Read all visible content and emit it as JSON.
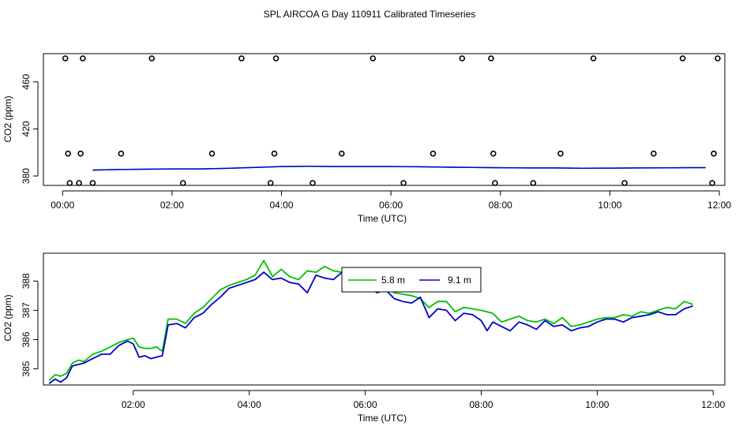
{
  "title": "SPL AIRCOA G  Day 110911  Calibrated Timeseries",
  "colors": {
    "series1": "#00c000",
    "series2": "#0000d0",
    "markers": "#000000"
  },
  "chart_data": [
    {
      "type": "scatter",
      "xlabel": "Time (UTC)",
      "ylabel": "CO2 (ppm)",
      "xlim": [
        -0.35,
        12.1
      ],
      "ylim": [
        372,
        484
      ],
      "x_ticks": [
        0,
        2,
        4,
        6,
        8,
        10,
        12
      ],
      "x_tick_labels": [
        "00:00",
        "02:00",
        "04:00",
        "06:00",
        "08:00",
        "10:00",
        "12:00"
      ],
      "y_ticks": [
        380,
        420,
        460
      ],
      "y_tick_labels": [
        "380",
        "420",
        "460"
      ],
      "markers": [
        {
          "x": 0.05,
          "y": 480
        },
        {
          "x": 0.37,
          "y": 480
        },
        {
          "x": 1.63,
          "y": 480
        },
        {
          "x": 3.27,
          "y": 480
        },
        {
          "x": 3.9,
          "y": 480
        },
        {
          "x": 5.67,
          "y": 480
        },
        {
          "x": 7.3,
          "y": 480
        },
        {
          "x": 7.83,
          "y": 480
        },
        {
          "x": 9.7,
          "y": 480
        },
        {
          "x": 11.33,
          "y": 480
        },
        {
          "x": 11.97,
          "y": 480
        },
        {
          "x": 0.1,
          "y": 399
        },
        {
          "x": 0.33,
          "y": 399
        },
        {
          "x": 1.07,
          "y": 399
        },
        {
          "x": 2.73,
          "y": 399
        },
        {
          "x": 3.87,
          "y": 399
        },
        {
          "x": 5.1,
          "y": 399
        },
        {
          "x": 6.77,
          "y": 399
        },
        {
          "x": 7.87,
          "y": 399
        },
        {
          "x": 9.1,
          "y": 399
        },
        {
          "x": 10.8,
          "y": 399
        },
        {
          "x": 11.9,
          "y": 399
        },
        {
          "x": 0.13,
          "y": 374
        },
        {
          "x": 0.3,
          "y": 374
        },
        {
          "x": 0.55,
          "y": 374
        },
        {
          "x": 2.2,
          "y": 374
        },
        {
          "x": 3.8,
          "y": 374
        },
        {
          "x": 4.57,
          "y": 374
        },
        {
          "x": 6.23,
          "y": 374
        },
        {
          "x": 7.9,
          "y": 374
        },
        {
          "x": 8.6,
          "y": 374
        },
        {
          "x": 10.27,
          "y": 374
        },
        {
          "x": 11.87,
          "y": 374
        }
      ],
      "series": [
        {
          "x": [
            0.55,
            1,
            2,
            2.5,
            3,
            3.5,
            4,
            4.5,
            5,
            5.5,
            6,
            6.5,
            7,
            7.5,
            8,
            8.5,
            9,
            9.5,
            10,
            10.5,
            11,
            11.5,
            11.75
          ],
          "values": [
            385,
            385.5,
            386,
            386,
            386.5,
            387.2,
            388,
            388.2,
            388,
            388,
            388,
            387.8,
            387.5,
            387.2,
            387,
            386.8,
            386.8,
            386.6,
            386.7,
            386.8,
            386.9,
            387.1,
            387.1
          ]
        },
        {
          "x": [
            0.55,
            1,
            2,
            2.5,
            3,
            3.5,
            4,
            4.5,
            5,
            5.5,
            6,
            6.5,
            7,
            7.5,
            8,
            8.5,
            9,
            9.5,
            10,
            10.5,
            11,
            11.5,
            11.75
          ],
          "values": [
            385,
            385.5,
            386,
            386,
            386.5,
            387.2,
            388,
            388.2,
            388,
            388,
            388,
            387.8,
            387.5,
            387.2,
            387,
            386.8,
            386.8,
            386.6,
            386.7,
            386.8,
            386.9,
            387.1,
            387.1
          ]
        }
      ]
    },
    {
      "type": "line",
      "xlabel": "Time (UTC)",
      "ylabel": "CO2 (ppm)",
      "xlim": [
        0.45,
        12.2
      ],
      "ylim": [
        384.45,
        388.95
      ],
      "x_ticks": [
        2,
        4,
        6,
        8,
        10,
        12
      ],
      "x_tick_labels": [
        "02:00",
        "04:00",
        "06:00",
        "08:00",
        "10:00",
        "12:00"
      ],
      "y_ticks": [
        385,
        386,
        387,
        388
      ],
      "y_tick_labels": [
        "385",
        "386",
        "387",
        "388"
      ],
      "legend_position": "top-center",
      "series": [
        {
          "name": "5.8 m",
          "x": [
            0.55,
            0.65,
            0.75,
            0.85,
            0.95,
            1.05,
            1.15,
            1.3,
            1.45,
            1.6,
            1.75,
            1.9,
            2.0,
            2.1,
            2.2,
            2.3,
            2.4,
            2.5,
            2.6,
            2.75,
            2.9,
            3.05,
            3.2,
            3.35,
            3.5,
            3.65,
            3.8,
            3.95,
            4.1,
            4.25,
            4.4,
            4.55,
            4.7,
            4.85,
            5.0,
            5.15,
            5.3,
            5.45,
            5.6,
            5.75,
            5.9,
            6.05,
            6.2,
            6.35,
            6.5,
            6.65,
            6.8,
            6.95,
            7.1,
            7.25,
            7.4,
            7.55,
            7.7,
            7.85,
            8.0,
            8.1,
            8.2,
            8.35,
            8.5,
            8.65,
            8.8,
            8.95,
            9.1,
            9.25,
            9.4,
            9.55,
            9.7,
            9.85,
            10.0,
            10.15,
            10.3,
            10.45,
            10.6,
            10.75,
            10.9,
            11.05,
            11.2,
            11.35,
            11.5,
            11.65
          ],
          "values": [
            384.6,
            384.8,
            384.75,
            384.85,
            385.2,
            385.3,
            385.25,
            385.5,
            385.6,
            385.75,
            385.9,
            386.0,
            386.05,
            385.75,
            385.7,
            385.7,
            385.75,
            385.6,
            386.7,
            386.7,
            386.55,
            386.9,
            387.1,
            387.4,
            387.7,
            387.85,
            387.95,
            388.05,
            388.2,
            388.7,
            388.15,
            388.4,
            388.15,
            388.05,
            388.35,
            388.3,
            388.5,
            388.35,
            388.3,
            388.3,
            388.45,
            388.1,
            387.9,
            387.8,
            387.6,
            387.55,
            387.5,
            387.4,
            387.1,
            387.3,
            387.3,
            386.95,
            387.1,
            387.05,
            387.0,
            386.95,
            386.9,
            386.6,
            386.7,
            386.8,
            386.65,
            386.6,
            386.7,
            386.55,
            386.75,
            386.45,
            386.5,
            386.6,
            386.7,
            386.75,
            386.75,
            386.85,
            386.8,
            386.95,
            386.9,
            387.0,
            387.1,
            387.05,
            387.3,
            387.2
          ]
        },
        {
          "name": "9.1 m",
          "x": [
            0.55,
            0.65,
            0.75,
            0.85,
            0.95,
            1.05,
            1.15,
            1.3,
            1.45,
            1.6,
            1.75,
            1.9,
            2.0,
            2.1,
            2.2,
            2.3,
            2.4,
            2.5,
            2.6,
            2.75,
            2.9,
            3.05,
            3.2,
            3.35,
            3.5,
            3.65,
            3.8,
            3.95,
            4.1,
            4.25,
            4.4,
            4.55,
            4.7,
            4.85,
            5.0,
            5.15,
            5.3,
            5.45,
            5.6,
            5.75,
            5.9,
            6.05,
            6.2,
            6.35,
            6.5,
            6.65,
            6.8,
            6.95,
            7.1,
            7.25,
            7.4,
            7.55,
            7.7,
            7.85,
            8.0,
            8.1,
            8.2,
            8.35,
            8.5,
            8.65,
            8.8,
            8.95,
            9.1,
            9.25,
            9.4,
            9.55,
            9.7,
            9.85,
            10.0,
            10.15,
            10.3,
            10.45,
            10.6,
            10.75,
            10.9,
            11.05,
            11.2,
            11.35,
            11.5,
            11.65
          ],
          "values": [
            384.5,
            384.65,
            384.55,
            384.7,
            385.1,
            385.15,
            385.2,
            385.35,
            385.5,
            385.5,
            385.8,
            385.95,
            385.85,
            385.4,
            385.45,
            385.35,
            385.4,
            385.45,
            386.5,
            386.55,
            386.4,
            386.75,
            386.9,
            387.2,
            387.45,
            387.75,
            387.85,
            387.95,
            388.05,
            388.3,
            388.05,
            388.1,
            387.95,
            387.9,
            387.6,
            388.2,
            388.1,
            388.05,
            388.3,
            388.0,
            388.2,
            387.85,
            387.6,
            387.7,
            387.4,
            387.3,
            387.25,
            387.45,
            386.75,
            387.05,
            387.0,
            386.65,
            386.9,
            386.85,
            386.65,
            386.3,
            386.6,
            386.45,
            386.3,
            386.6,
            386.5,
            386.35,
            386.65,
            386.45,
            386.5,
            386.3,
            386.4,
            386.45,
            386.6,
            386.7,
            386.7,
            386.6,
            386.75,
            386.8,
            386.85,
            386.95,
            386.85,
            386.85,
            387.05,
            387.15
          ]
        }
      ]
    }
  ]
}
